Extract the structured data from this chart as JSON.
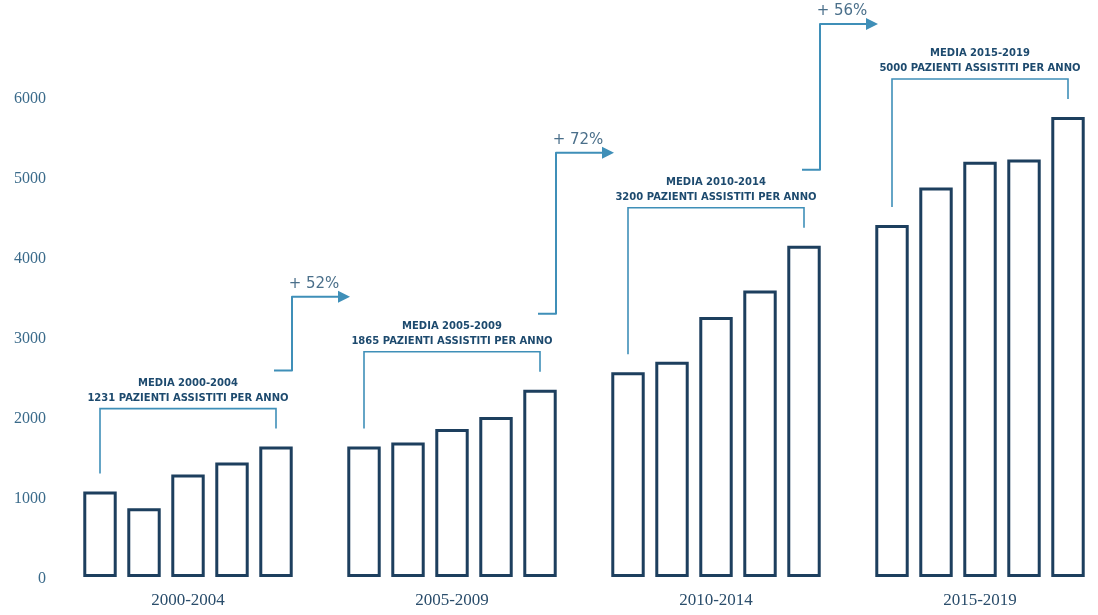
{
  "chart_data": {
    "type": "bar",
    "categories": [
      null,
      null,
      "2000-2004",
      null,
      null,
      null,
      null,
      null,
      "2005-2009",
      null,
      null,
      null,
      null,
      null,
      "2010-2014",
      null,
      null,
      null,
      null,
      null,
      "2015-2019",
      null,
      null
    ],
    "values": [
      1070,
      860,
      1280,
      1430,
      1630,
      null,
      1630,
      1680,
      1850,
      2000,
      2340,
      null,
      2560,
      2690,
      3250,
      3580,
      4140,
      null,
      4400,
      4870,
      5190,
      5220,
      5750
    ],
    "color": "#1d3f5e",
    "ylim": [
      0,
      6000
    ],
    "yticks": [
      0,
      1000,
      2000,
      3000,
      4000,
      5000,
      6000
    ],
    "grid": false,
    "annotations": [
      "MEDIA 2000-2004\n1231 PAZIENTI ASSISTITI PER ANNO",
      "+ 52%",
      "MEDIA 2005-2009\n1865 PAZIENTI ASSISTITI PER ANNO",
      "+ 72%",
      "MEDIA 2010-2014\n3200 PAZIENTI ASSISTITI PER ANNO",
      "+ 56%",
      "MEDIA 2015-2019\n5000 PAZIENTI ASSISTITI PER ANNO"
    ]
  }
}
